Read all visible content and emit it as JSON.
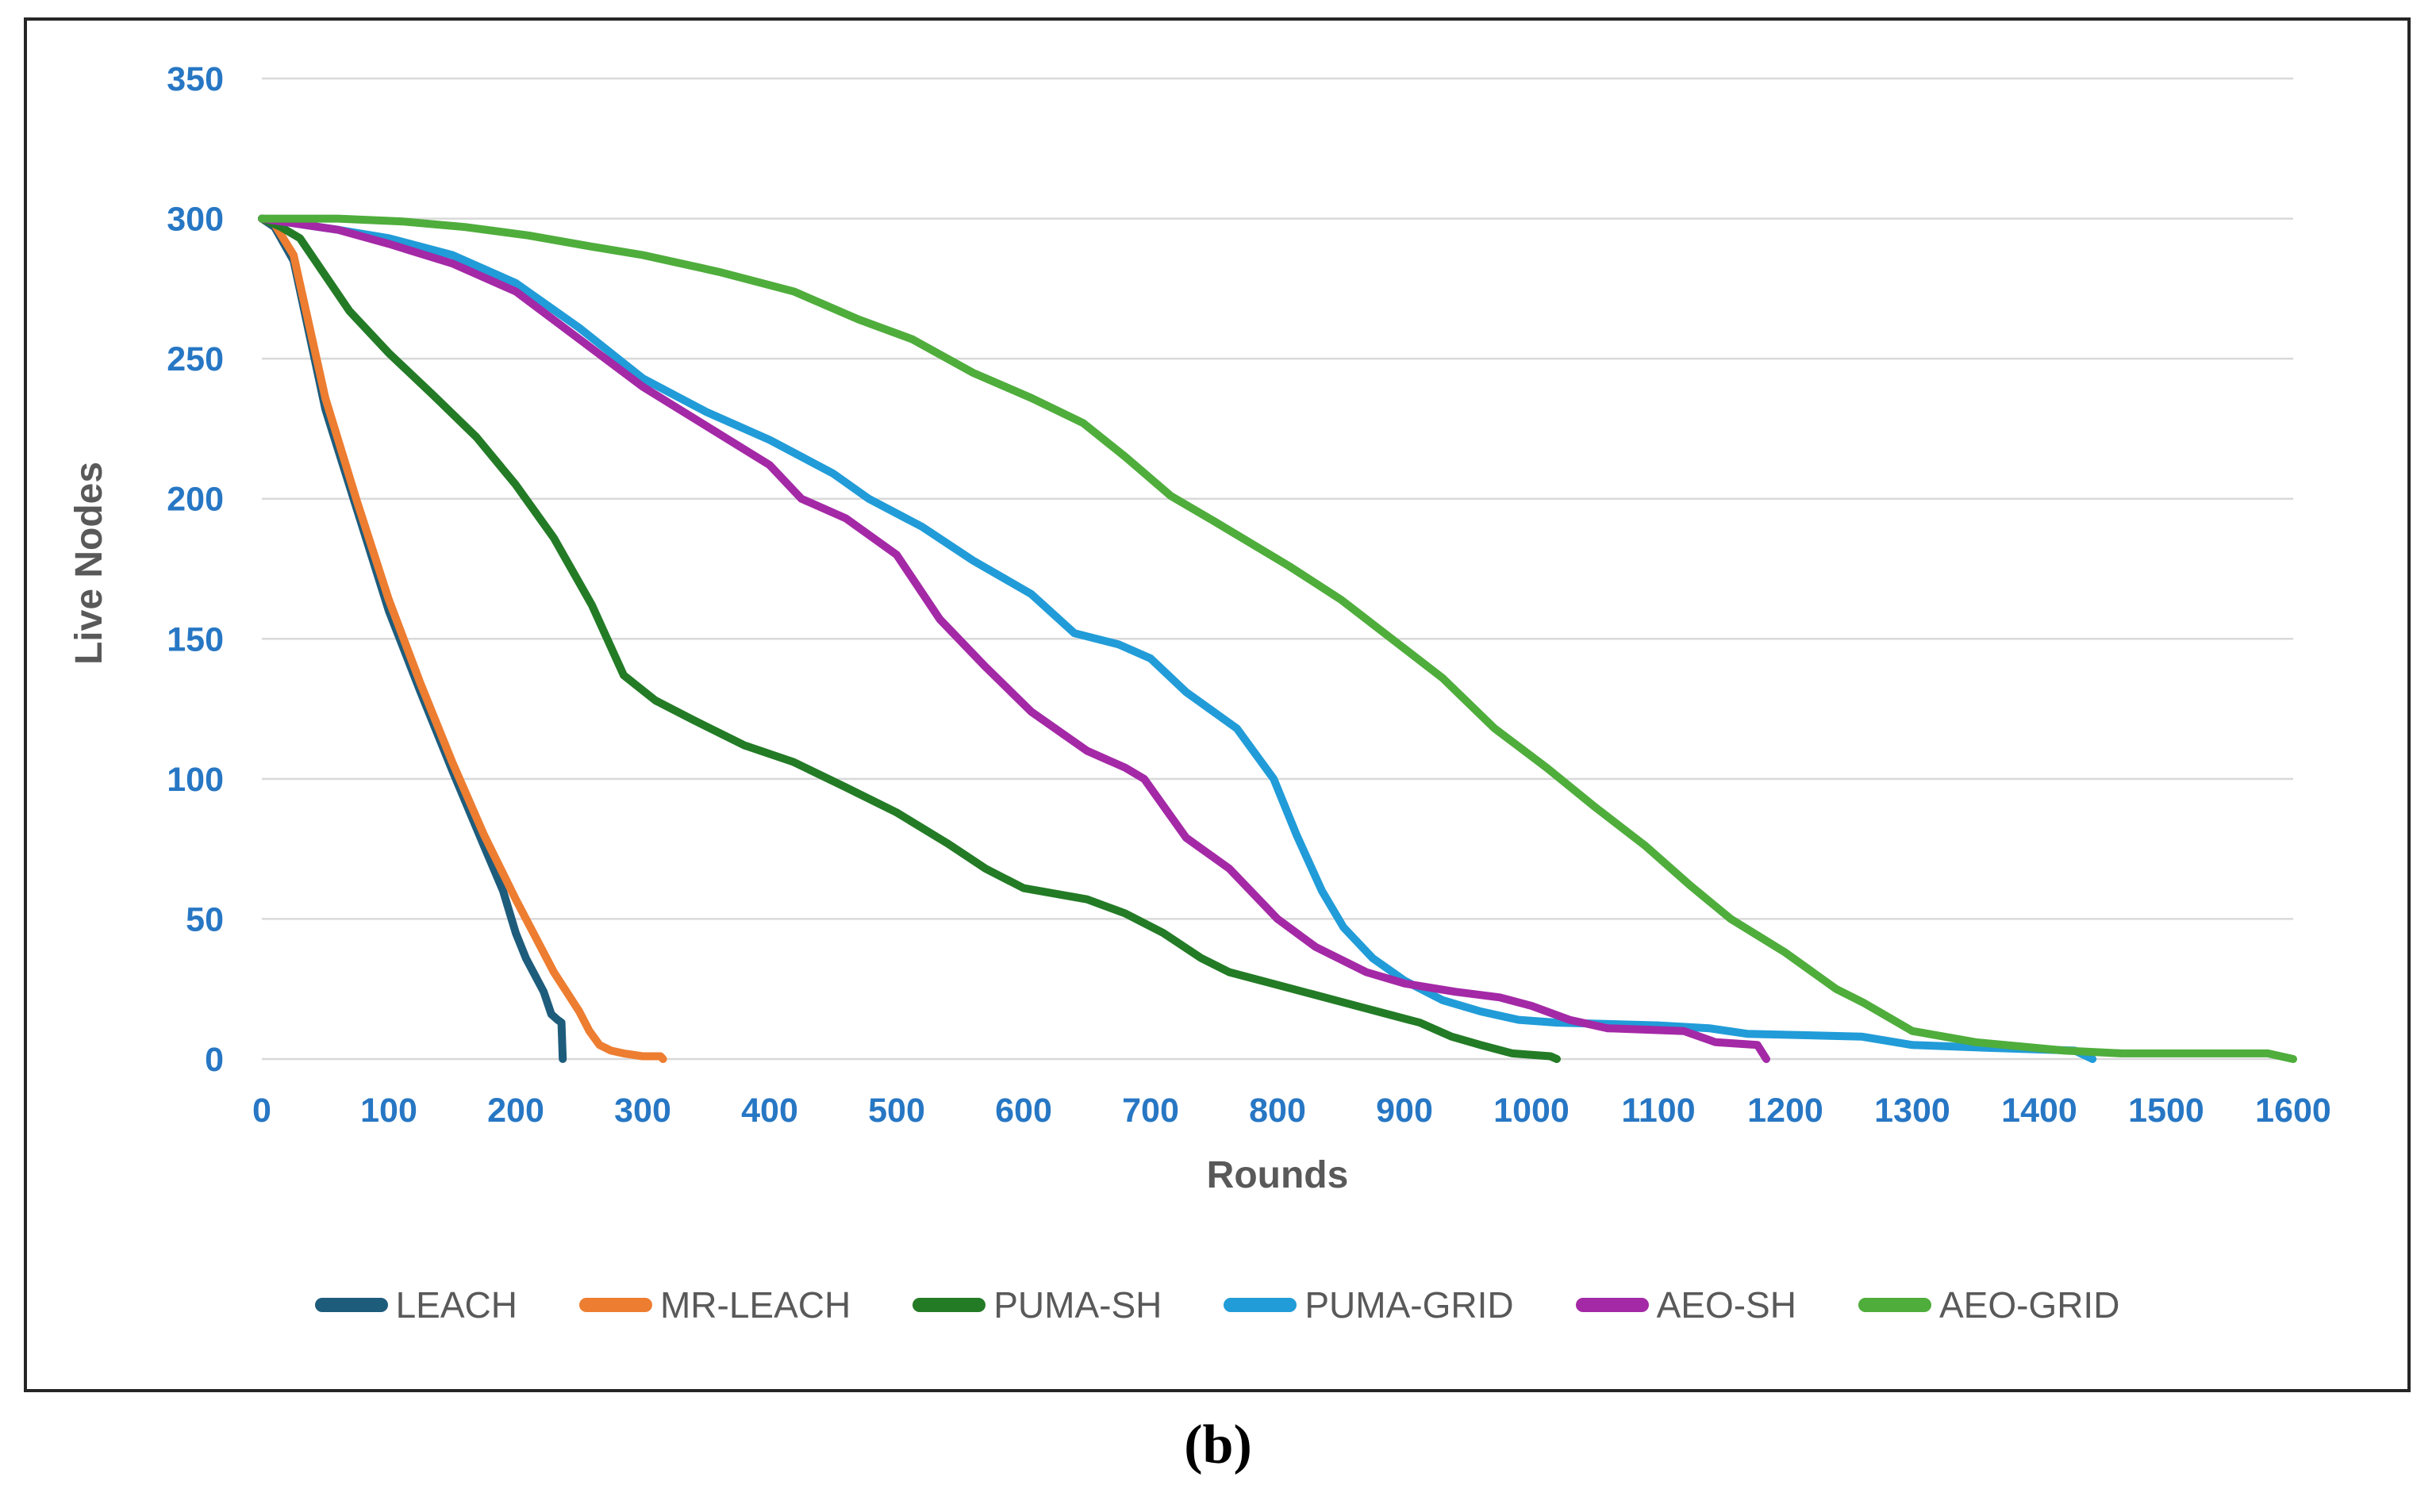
{
  "figure": {
    "caption": "(b)"
  },
  "colors": {
    "tick_label": "#2777C4",
    "grid": "#D9D9D9",
    "axis_title": "#595959",
    "legend_text": "#595959",
    "frame_border": "#262626"
  },
  "chart_data": {
    "type": "line",
    "title": "",
    "xlabel": "Rounds",
    "ylabel": "Live Nodes",
    "xlim": [
      0,
      1600
    ],
    "ylim": [
      0,
      350
    ],
    "x_ticks": [
      0,
      100,
      200,
      300,
      400,
      500,
      600,
      700,
      800,
      900,
      1000,
      1100,
      1200,
      1300,
      1400,
      1500,
      1600
    ],
    "y_ticks": [
      0,
      50,
      100,
      150,
      200,
      250,
      300,
      350
    ],
    "grid": "horizontal",
    "legend_position": "bottom",
    "series": [
      {
        "name": "LEACH",
        "color": "#1E5C7C",
        "points": [
          [
            0,
            300
          ],
          [
            10,
            297
          ],
          [
            25,
            285
          ],
          [
            50,
            232
          ],
          [
            75,
            196
          ],
          [
            100,
            160
          ],
          [
            125,
            131
          ],
          [
            150,
            103
          ],
          [
            175,
            76
          ],
          [
            190,
            60
          ],
          [
            200,
            45
          ],
          [
            208,
            36
          ],
          [
            215,
            30
          ],
          [
            222,
            24
          ],
          [
            228,
            16
          ],
          [
            233,
            14
          ],
          [
            236,
            13
          ],
          [
            237,
            0
          ]
        ]
      },
      {
        "name": "MR-LEACH",
        "color": "#ED7D31",
        "points": [
          [
            0,
            300
          ],
          [
            10,
            298
          ],
          [
            25,
            287
          ],
          [
            50,
            236
          ],
          [
            75,
            199
          ],
          [
            100,
            164
          ],
          [
            125,
            134
          ],
          [
            150,
            106
          ],
          [
            175,
            80
          ],
          [
            200,
            57
          ],
          [
            215,
            44
          ],
          [
            230,
            31
          ],
          [
            240,
            24
          ],
          [
            250,
            17
          ],
          [
            258,
            10
          ],
          [
            266,
            5
          ],
          [
            275,
            3
          ],
          [
            285,
            2
          ],
          [
            300,
            1
          ],
          [
            314,
            1
          ],
          [
            316,
            0
          ]
        ]
      },
      {
        "name": "PUMA-SH",
        "color": "#237B26",
        "points": [
          [
            0,
            300
          ],
          [
            15,
            297
          ],
          [
            30,
            293
          ],
          [
            69,
            267
          ],
          [
            100,
            252
          ],
          [
            135,
            237
          ],
          [
            169,
            222
          ],
          [
            200,
            205
          ],
          [
            230,
            186
          ],
          [
            260,
            162
          ],
          [
            285,
            137
          ],
          [
            310,
            128
          ],
          [
            340,
            121
          ],
          [
            380,
            112
          ],
          [
            419,
            106
          ],
          [
            460,
            97
          ],
          [
            500,
            88
          ],
          [
            540,
            77
          ],
          [
            570,
            68
          ],
          [
            600,
            61
          ],
          [
            650,
            57
          ],
          [
            680,
            52
          ],
          [
            710,
            45
          ],
          [
            740,
            36
          ],
          [
            762,
            31
          ],
          [
            812,
            25
          ],
          [
            862,
            19
          ],
          [
            912,
            13
          ],
          [
            937,
            8
          ],
          [
            960,
            5
          ],
          [
            985,
            2
          ],
          [
            1015,
            1
          ],
          [
            1020,
            0
          ]
        ]
      },
      {
        "name": "PUMA-GRID",
        "color": "#219CD8",
        "points": [
          [
            0,
            300
          ],
          [
            30,
            298
          ],
          [
            60,
            296
          ],
          [
            100,
            293
          ],
          [
            150,
            287
          ],
          [
            200,
            277
          ],
          [
            250,
            261
          ],
          [
            300,
            243
          ],
          [
            350,
            231
          ],
          [
            400,
            221
          ],
          [
            450,
            209
          ],
          [
            478,
            200
          ],
          [
            520,
            190
          ],
          [
            560,
            178
          ],
          [
            606,
            166
          ],
          [
            640,
            152
          ],
          [
            675,
            148
          ],
          [
            700,
            143
          ],
          [
            728,
            131
          ],
          [
            768,
            118
          ],
          [
            797,
            100
          ],
          [
            815,
            80
          ],
          [
            835,
            60
          ],
          [
            852,
            47
          ],
          [
            875,
            36
          ],
          [
            900,
            28
          ],
          [
            930,
            21
          ],
          [
            960,
            17
          ],
          [
            990,
            14
          ],
          [
            1020,
            13
          ],
          [
            1100,
            12
          ],
          [
            1140,
            11
          ],
          [
            1170,
            9
          ],
          [
            1260,
            8
          ],
          [
            1300,
            5
          ],
          [
            1360,
            4
          ],
          [
            1428,
            3
          ],
          [
            1442,
            0
          ]
        ]
      },
      {
        "name": "AEO-SH",
        "color": "#A429A6",
        "points": [
          [
            0,
            300
          ],
          [
            30,
            298
          ],
          [
            60,
            296
          ],
          [
            100,
            291
          ],
          [
            150,
            284
          ],
          [
            200,
            274
          ],
          [
            250,
            257
          ],
          [
            300,
            240
          ],
          [
            350,
            226
          ],
          [
            400,
            212
          ],
          [
            425,
            200
          ],
          [
            460,
            193
          ],
          [
            500,
            180
          ],
          [
            534,
            157
          ],
          [
            570,
            140
          ],
          [
            606,
            124
          ],
          [
            650,
            110
          ],
          [
            680,
            104
          ],
          [
            695,
            100
          ],
          [
            728,
            79
          ],
          [
            762,
            68
          ],
          [
            800,
            50
          ],
          [
            830,
            40
          ],
          [
            870,
            31
          ],
          [
            900,
            27
          ],
          [
            940,
            24
          ],
          [
            975,
            22
          ],
          [
            1000,
            19
          ],
          [
            1030,
            14
          ],
          [
            1060,
            11
          ],
          [
            1120,
            10
          ],
          [
            1145,
            6
          ],
          [
            1178,
            5
          ],
          [
            1185,
            0
          ]
        ]
      },
      {
        "name": "AEO-GRID",
        "color": "#4FAD3C",
        "points": [
          [
            0,
            300
          ],
          [
            60,
            300
          ],
          [
            110,
            299
          ],
          [
            160,
            297
          ],
          [
            210,
            294
          ],
          [
            260,
            290
          ],
          [
            300,
            287
          ],
          [
            360,
            281
          ],
          [
            419,
            274
          ],
          [
            470,
            264
          ],
          [
            512,
            257
          ],
          [
            560,
            245
          ],
          [
            606,
            236
          ],
          [
            647,
            227
          ],
          [
            680,
            215
          ],
          [
            716,
            201
          ],
          [
            750,
            192
          ],
          [
            809,
            176
          ],
          [
            850,
            164
          ],
          [
            890,
            150
          ],
          [
            930,
            136
          ],
          [
            971,
            118
          ],
          [
            1012,
            104
          ],
          [
            1050,
            90
          ],
          [
            1090,
            76
          ],
          [
            1125,
            62
          ],
          [
            1157,
            50
          ],
          [
            1200,
            38
          ],
          [
            1240,
            25
          ],
          [
            1262,
            20
          ],
          [
            1300,
            10
          ],
          [
            1350,
            6
          ],
          [
            1420,
            3
          ],
          [
            1465,
            2
          ],
          [
            1580,
            2
          ],
          [
            1600,
            0
          ]
        ]
      }
    ]
  }
}
